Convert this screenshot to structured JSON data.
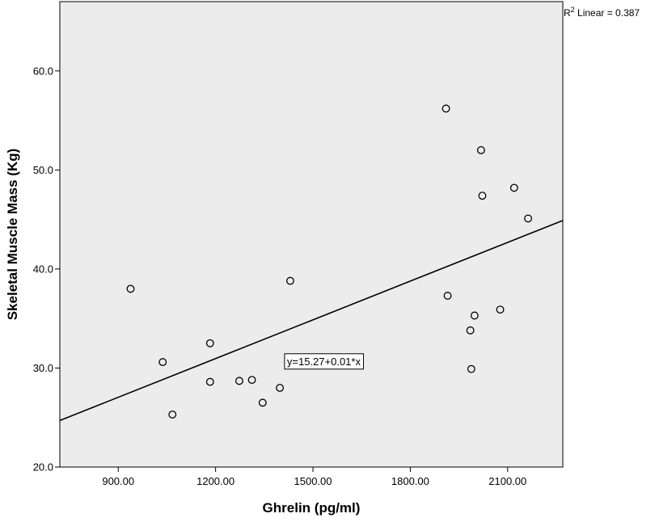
{
  "chart_data": {
    "type": "scatter",
    "title": "",
    "xlabel": "Ghrelin (pg/ml)",
    "ylabel": "Skeletal Muscle Mass (Kg)",
    "xlim": [
      720,
      2270
    ],
    "ylim": [
      20,
      67
    ],
    "x_ticks": [
      900,
      1200,
      1500,
      1800,
      2100
    ],
    "x_tick_labels": [
      "900.00",
      "1200.00",
      "1500.00",
      "1800.00",
      "2100.00"
    ],
    "y_ticks": [
      20,
      30,
      40,
      50,
      60
    ],
    "y_tick_labels": [
      "20.0",
      "30.0",
      "40.0",
      "50.0",
      "60.0"
    ],
    "grid": false,
    "plot_background": "#ececec",
    "marker": "open-circle",
    "points": [
      {
        "x": 938,
        "y": 38.0
      },
      {
        "x": 1037,
        "y": 30.6
      },
      {
        "x": 1067,
        "y": 25.3
      },
      {
        "x": 1183,
        "y": 32.5
      },
      {
        "x": 1183,
        "y": 28.6
      },
      {
        "x": 1273,
        "y": 28.7
      },
      {
        "x": 1312,
        "y": 28.8
      },
      {
        "x": 1345,
        "y": 26.5
      },
      {
        "x": 1398,
        "y": 28.0
      },
      {
        "x": 1430,
        "y": 38.8
      },
      {
        "x": 1910,
        "y": 56.2
      },
      {
        "x": 1915,
        "y": 37.3
      },
      {
        "x": 1985,
        "y": 33.8
      },
      {
        "x": 1988,
        "y": 29.9
      },
      {
        "x": 1998,
        "y": 35.3
      },
      {
        "x": 2018,
        "y": 52.0
      },
      {
        "x": 2022,
        "y": 47.4
      },
      {
        "x": 2077,
        "y": 35.9
      },
      {
        "x": 2120,
        "y": 48.2
      },
      {
        "x": 2163,
        "y": 45.1
      }
    ],
    "fit_line": {
      "label": "y=15.27+0.01*x",
      "label_anchor": {
        "x": 1420,
        "y": 30.3
      },
      "points": [
        [
          720,
          24.7
        ],
        [
          2270,
          44.9
        ]
      ]
    },
    "r2_label": {
      "prefix": "R",
      "superscript": "2",
      "text": " Linear = 0.387"
    }
  }
}
